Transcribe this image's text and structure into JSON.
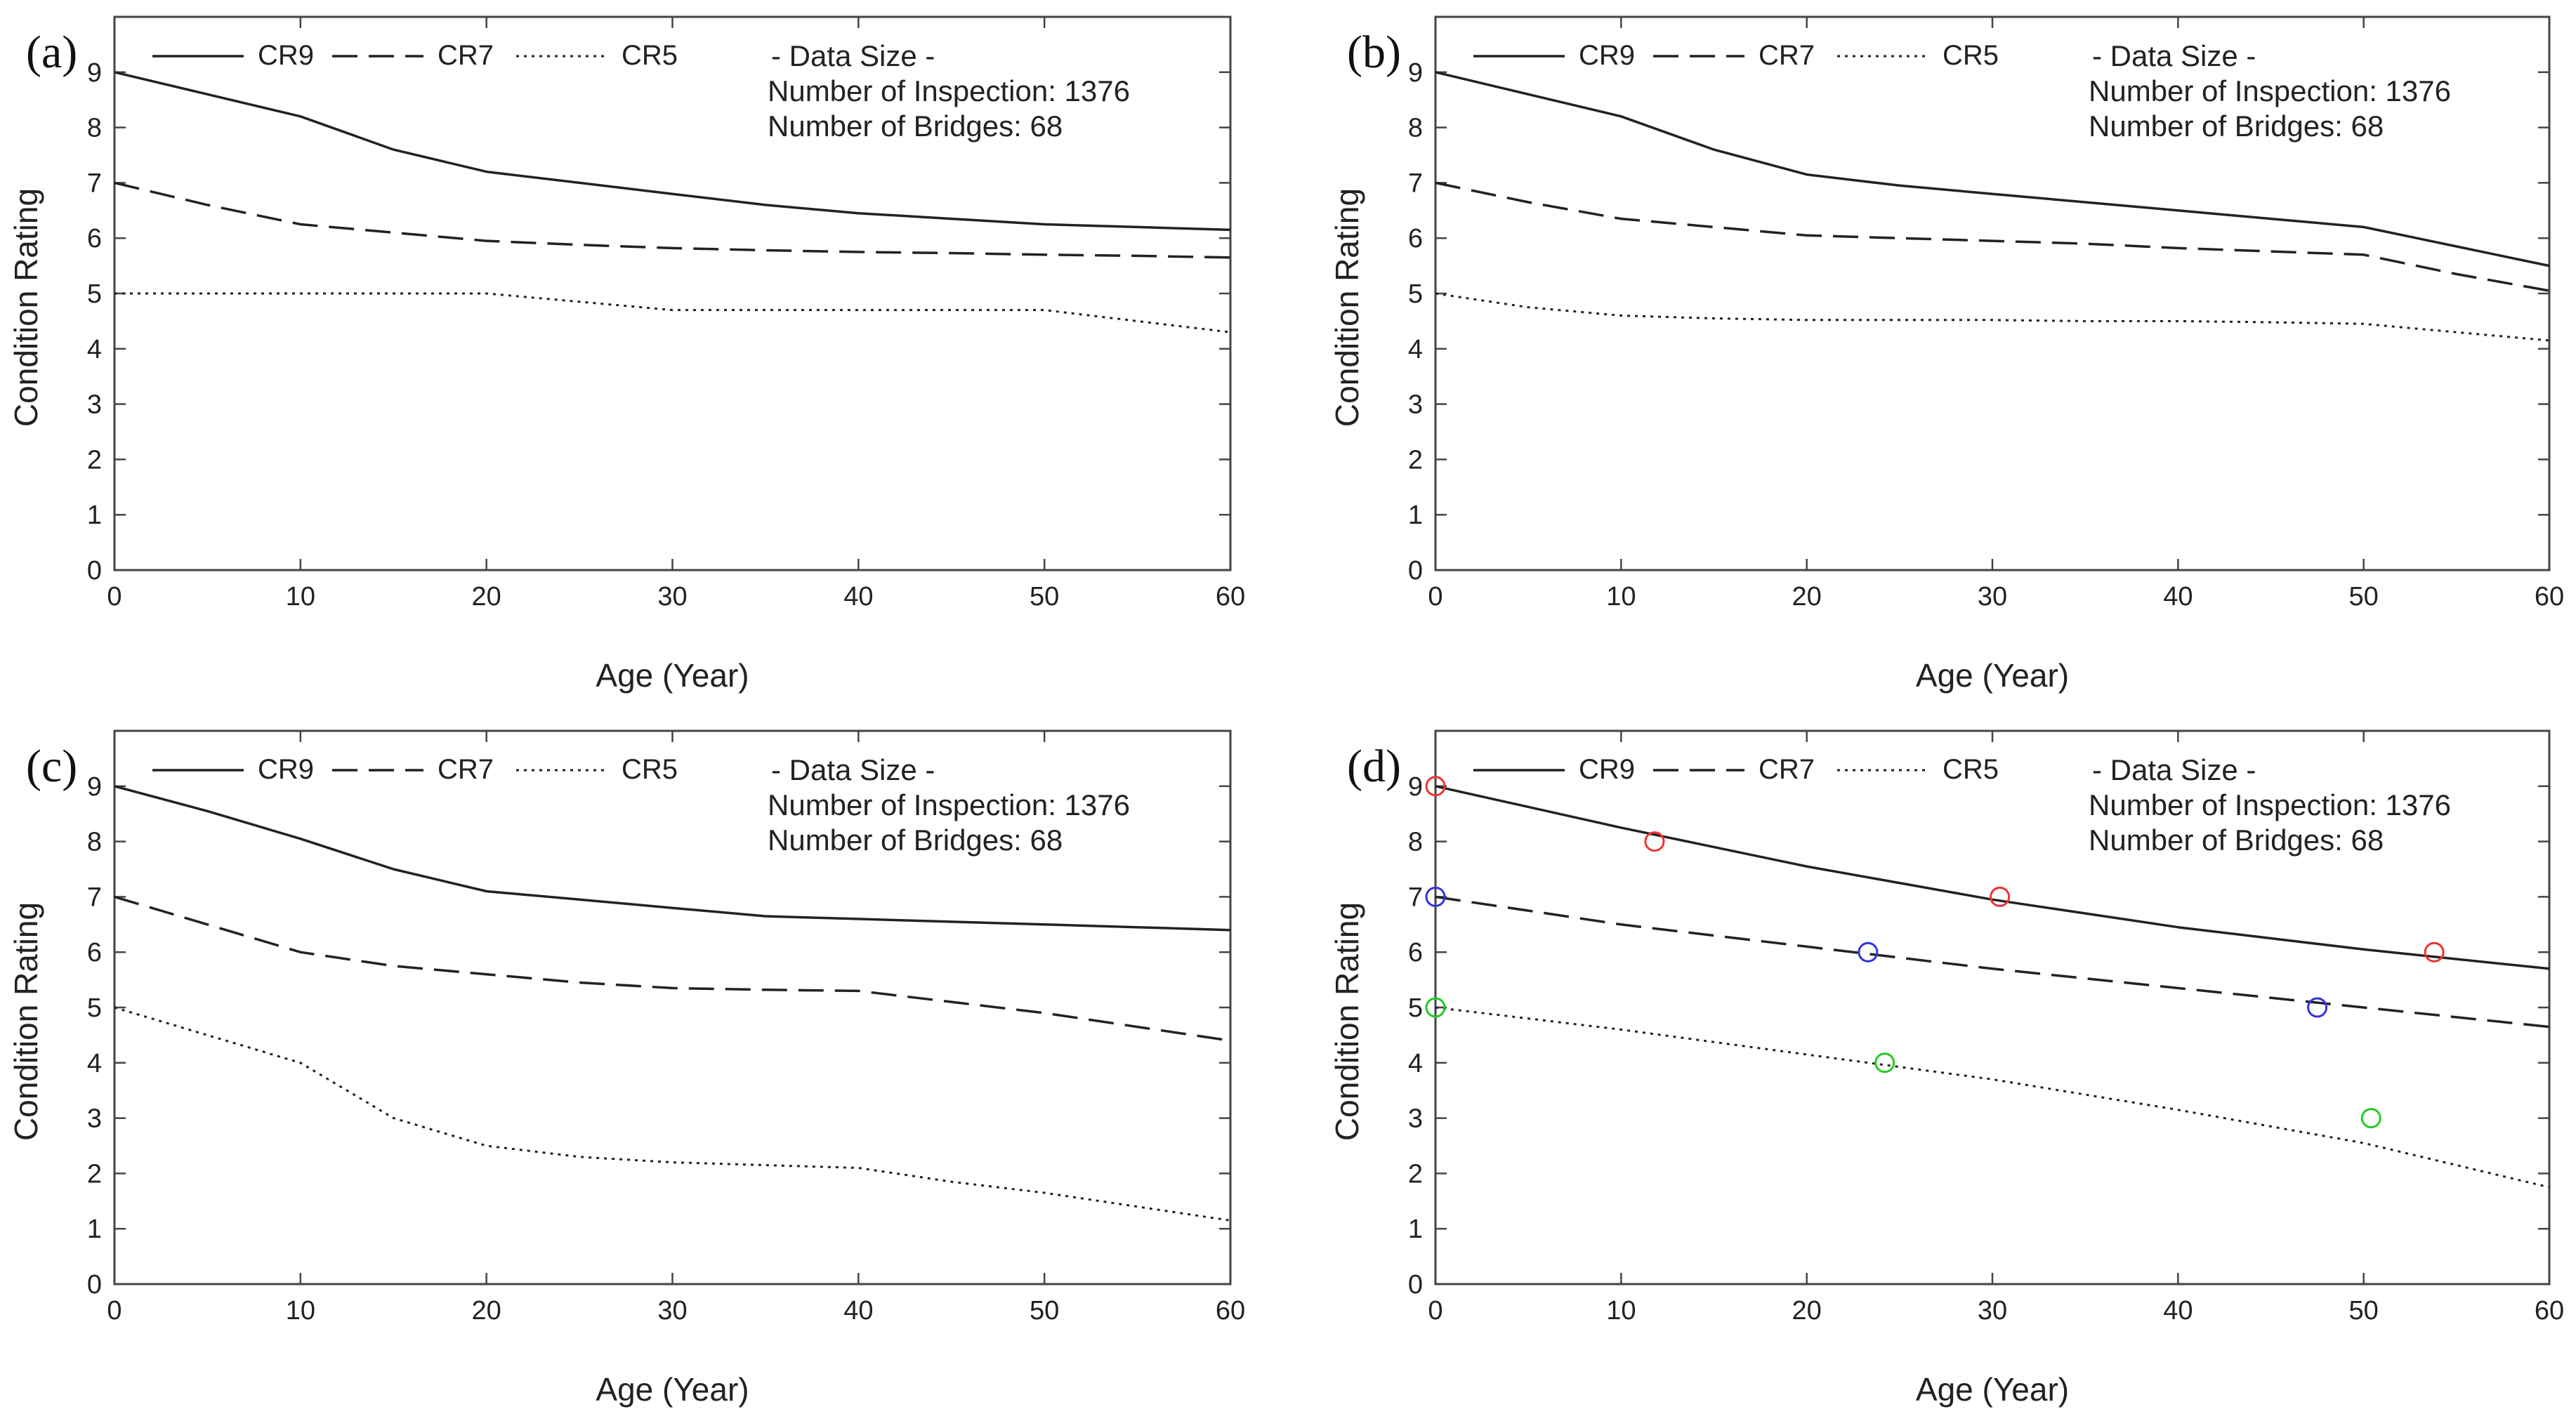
{
  "chart_data": [
    {
      "panel": "(a)",
      "type": "line",
      "xlabel": "Age (Year)",
      "ylabel": "Condition Rating",
      "xlim": [
        0,
        60
      ],
      "ylim": [
        0,
        10
      ],
      "xticks": [
        "0",
        "10",
        "20",
        "30",
        "40",
        "50",
        "60"
      ],
      "yticks": [
        "0",
        "1",
        "2",
        "3",
        "4",
        "5",
        "6",
        "7",
        "8",
        "9"
      ],
      "info": [
        "- Data Size -",
        "Number of Inspection: 1376",
        "Number of Bridges: 68"
      ],
      "series": [
        {
          "name": "CR9",
          "style": "solid",
          "x": [
            0,
            5,
            10,
            15,
            20,
            25,
            30,
            35,
            40,
            45,
            50,
            55,
            60
          ],
          "values": [
            9,
            8.6,
            8.2,
            7.6,
            7.2,
            7.0,
            6.8,
            6.6,
            6.45,
            6.35,
            6.25,
            6.2,
            6.15
          ]
        },
        {
          "name": "CR7",
          "style": "dashed",
          "x": [
            0,
            5,
            10,
            15,
            20,
            25,
            30,
            35,
            40,
            45,
            50,
            55,
            60
          ],
          "values": [
            7,
            6.6,
            6.25,
            6.1,
            5.95,
            5.88,
            5.82,
            5.78,
            5.75,
            5.73,
            5.7,
            5.68,
            5.65
          ]
        },
        {
          "name": "CR5",
          "style": "dotted",
          "x": [
            0,
            5,
            10,
            15,
            20,
            25,
            30,
            35,
            40,
            45,
            50,
            55,
            60
          ],
          "values": [
            5,
            5,
            5,
            5,
            5,
            4.85,
            4.7,
            4.7,
            4.7,
            4.7,
            4.7,
            4.5,
            4.3
          ]
        }
      ]
    },
    {
      "panel": "(b)",
      "type": "line",
      "xlabel": "Age (Year)",
      "ylabel": "Condition Rating",
      "xlim": [
        0,
        60
      ],
      "ylim": [
        0,
        10
      ],
      "xticks": [
        "0",
        "10",
        "20",
        "30",
        "40",
        "50",
        "60"
      ],
      "yticks": [
        "0",
        "1",
        "2",
        "3",
        "4",
        "5",
        "6",
        "7",
        "8",
        "9"
      ],
      "info": [
        "- Data Size -",
        "Number of Inspection: 1376",
        "Number of Bridges: 68"
      ],
      "series": [
        {
          "name": "CR9",
          "style": "solid",
          "x": [
            0,
            5,
            10,
            15,
            20,
            25,
            30,
            35,
            40,
            45,
            50,
            55,
            60
          ],
          "values": [
            9,
            8.6,
            8.2,
            7.6,
            7.15,
            6.95,
            6.8,
            6.65,
            6.5,
            6.35,
            6.2,
            5.85,
            5.5
          ]
        },
        {
          "name": "CR7",
          "style": "dashed",
          "x": [
            0,
            5,
            10,
            15,
            20,
            25,
            30,
            35,
            40,
            45,
            50,
            55,
            60
          ],
          "values": [
            7,
            6.65,
            6.35,
            6.2,
            6.05,
            6.0,
            5.95,
            5.9,
            5.82,
            5.76,
            5.7,
            5.35,
            5.05
          ]
        },
        {
          "name": "CR5",
          "style": "dotted",
          "x": [
            0,
            5,
            10,
            15,
            20,
            25,
            30,
            35,
            40,
            45,
            50,
            55,
            60
          ],
          "values": [
            5,
            4.75,
            4.6,
            4.55,
            4.52,
            4.52,
            4.52,
            4.5,
            4.5,
            4.48,
            4.45,
            4.3,
            4.15
          ]
        }
      ]
    },
    {
      "panel": "(c)",
      "type": "line",
      "xlabel": "Age (Year)",
      "ylabel": "Condition Rating",
      "xlim": [
        0,
        60
      ],
      "ylim": [
        0,
        10
      ],
      "xticks": [
        "0",
        "10",
        "20",
        "30",
        "40",
        "50",
        "60"
      ],
      "yticks": [
        "0",
        "1",
        "2",
        "3",
        "4",
        "5",
        "6",
        "7",
        "8",
        "9"
      ],
      "info": [
        "- Data Size -",
        "Number of Inspection: 1376",
        "Number of Bridges: 68"
      ],
      "series": [
        {
          "name": "CR9",
          "style": "solid",
          "x": [
            0,
            5,
            10,
            15,
            20,
            25,
            30,
            35,
            40,
            45,
            50,
            55,
            60
          ],
          "values": [
            9,
            8.55,
            8.05,
            7.5,
            7.1,
            6.95,
            6.8,
            6.65,
            6.6,
            6.55,
            6.5,
            6.45,
            6.4
          ]
        },
        {
          "name": "CR7",
          "style": "dashed",
          "x": [
            0,
            5,
            10,
            15,
            20,
            25,
            30,
            35,
            40,
            45,
            50,
            55,
            60
          ],
          "values": [
            7,
            6.5,
            6.0,
            5.75,
            5.6,
            5.45,
            5.35,
            5.32,
            5.3,
            5.1,
            4.9,
            4.65,
            4.4
          ]
        },
        {
          "name": "CR5",
          "style": "dotted",
          "x": [
            0,
            5,
            10,
            15,
            20,
            25,
            30,
            35,
            40,
            45,
            50,
            55,
            60
          ],
          "values": [
            5,
            4.5,
            4.0,
            3.0,
            2.5,
            2.3,
            2.2,
            2.15,
            2.1,
            1.85,
            1.65,
            1.4,
            1.15
          ]
        }
      ]
    },
    {
      "panel": "(d)",
      "type": "line",
      "xlabel": "Age (Year)",
      "ylabel": "Condition Rating",
      "xlim": [
        0,
        60
      ],
      "ylim": [
        0,
        10
      ],
      "xticks": [
        "0",
        "10",
        "20",
        "30",
        "40",
        "50",
        "60"
      ],
      "yticks": [
        "0",
        "1",
        "2",
        "3",
        "4",
        "5",
        "6",
        "7",
        "8",
        "9"
      ],
      "info": [
        "- Data Size -",
        "Number of Inspection: 1376",
        "Number of Bridges: 68"
      ],
      "series": [
        {
          "name": "CR9",
          "style": "solid",
          "x": [
            0,
            10,
            20,
            30,
            40,
            50,
            60
          ],
          "values": [
            9,
            8.25,
            7.55,
            6.95,
            6.45,
            6.05,
            5.7
          ]
        },
        {
          "name": "CR7",
          "style": "dashed",
          "x": [
            0,
            10,
            20,
            30,
            40,
            50,
            60
          ],
          "values": [
            7,
            6.5,
            6.1,
            5.7,
            5.35,
            5.0,
            4.65
          ]
        },
        {
          "name": "CR5",
          "style": "dotted",
          "x": [
            0,
            10,
            20,
            30,
            40,
            50,
            60
          ],
          "values": [
            5,
            4.6,
            4.15,
            3.7,
            3.15,
            2.55,
            1.75
          ]
        }
      ],
      "markers": [
        {
          "group": "red",
          "color": "#ee3333",
          "points": [
            [
              0,
              9
            ],
            [
              11.8,
              8
            ],
            [
              30.4,
              7
            ],
            [
              53.8,
              6
            ]
          ]
        },
        {
          "group": "blue",
          "color": "#3333dd",
          "points": [
            [
              0,
              7
            ],
            [
              23.3,
              6
            ],
            [
              47.5,
              5
            ]
          ]
        },
        {
          "group": "green",
          "color": "#22cc22",
          "points": [
            [
              0,
              5
            ],
            [
              24.2,
              4
            ],
            [
              50.4,
              3
            ]
          ]
        }
      ]
    }
  ]
}
